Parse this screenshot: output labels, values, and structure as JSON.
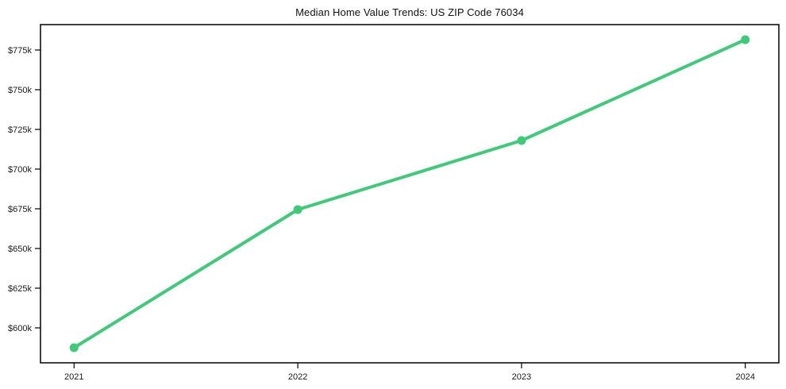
{
  "title": "Median Home Value Trends: US ZIP Code 76034",
  "colors": {
    "line": "#3dcb78",
    "axis": "#000000",
    "text": "#1a1a1a",
    "background": "#ffffff"
  },
  "chart_data": {
    "type": "line",
    "title": "Median Home Value Trends: US ZIP Code 76034",
    "x": [
      2021,
      2022,
      2023,
      2024
    ],
    "x_tick_labels": [
      "2021",
      "2022",
      "2023",
      "2024"
    ],
    "series": [
      {
        "name": "Median Home Value",
        "values": [
          587500,
          674500,
          718000,
          781500
        ]
      }
    ],
    "y_ticks": [
      600000,
      625000,
      650000,
      675000,
      700000,
      725000,
      750000,
      775000
    ],
    "y_tick_labels": [
      "$600k",
      "$625k",
      "$650k",
      "$675k",
      "$700k",
      "$725k",
      "$750k",
      "$775k"
    ],
    "ylim": [
      578000,
      791000
    ],
    "xlim": [
      2020.85,
      2024.15
    ],
    "grid": false,
    "legend_position": "none",
    "marker": "circle",
    "line_color": "#3dcb78",
    "line_width": 4,
    "marker_radius": 5.5
  }
}
